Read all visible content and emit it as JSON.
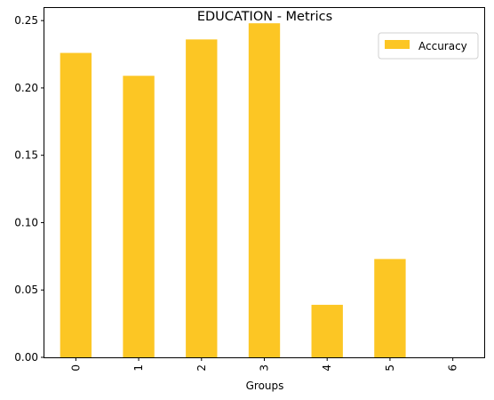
{
  "chart_data": {
    "type": "bar",
    "title": "EDUCATION - Metrics",
    "xlabel": "Groups",
    "ylabel": "",
    "categories": [
      "0",
      "1",
      "2",
      "3",
      "4",
      "5",
      "6"
    ],
    "series": [
      {
        "name": "Accuracy",
        "color": "#fcc624",
        "values": [
          0.226,
          0.209,
          0.236,
          0.248,
          0.039,
          0.073,
          0.0
        ]
      }
    ],
    "ylim": [
      0,
      0.26
    ],
    "yticks": [
      "0.00",
      "0.05",
      "0.10",
      "0.15",
      "0.20",
      "0.25"
    ],
    "grid": false,
    "legend_position": "top-right"
  }
}
